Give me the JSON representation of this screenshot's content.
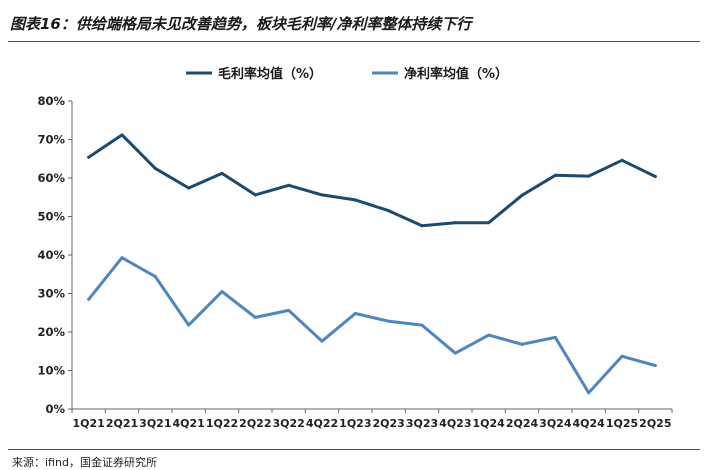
{
  "figure": {
    "title": "图表16：供给端格局未见改善趋势，板块毛利率/净利率整体持续下行",
    "source": "来源：ifind，国金证券研究所"
  },
  "chart_data": {
    "type": "line",
    "categories": [
      "1Q21",
      "2Q21",
      "3Q21",
      "4Q21",
      "1Q22",
      "2Q22",
      "3Q22",
      "4Q22",
      "1Q23",
      "2Q23",
      "3Q23",
      "4Q23",
      "1Q24",
      "2Q24",
      "3Q24",
      "4Q24",
      "1Q25",
      "2Q25"
    ],
    "series": [
      {
        "name": "毛利率均值（%）",
        "color": "#1b4a6e",
        "values": [
          65.4,
          71.2,
          62.5,
          57.4,
          61.2,
          55.6,
          58.1,
          55.6,
          54.3,
          51.5,
          47.6,
          48.4,
          48.4,
          55.5,
          60.7,
          60.5,
          64.6,
          60.4
        ]
      },
      {
        "name": "净利率均值（%）",
        "color": "#4f86bd",
        "values": [
          28.5,
          39.3,
          34.4,
          21.8,
          30.5,
          23.8,
          25.6,
          17.6,
          24.8,
          22.8,
          21.8,
          14.5,
          19.2,
          16.8,
          18.6,
          4.2,
          13.7,
          11.3
        ]
      }
    ],
    "y_ticks": [
      "0%",
      "10%",
      "20%",
      "30%",
      "40%",
      "50%",
      "60%",
      "70%",
      "80%"
    ],
    "ylim": [
      0,
      80
    ],
    "legend_position": "top-center",
    "grid": false
  }
}
